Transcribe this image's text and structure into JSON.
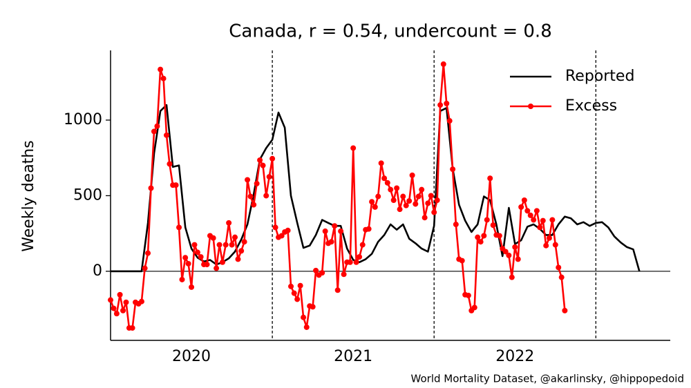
{
  "chart_data": {
    "type": "line",
    "title": "Canada, r = 0.54, undercount = 0.8",
    "y_label": "Weekly deaths",
    "source": "World Mortality Dataset, @akarlinsky, @hippopedoid",
    "xlim": [
      2020,
      2023.46
    ],
    "ylim": [
      -457,
      1461
    ],
    "xticks": [
      {
        "value": 2020.5,
        "label": "2020"
      },
      {
        "value": 2021.5,
        "label": "2021"
      },
      {
        "value": 2022.5,
        "label": "2022"
      }
    ],
    "yticks": [
      0,
      500,
      1000
    ],
    "vlines": [
      2021,
      2022,
      2023
    ],
    "legend": "upper right",
    "series": [
      {
        "name": "Reported",
        "color": "#000000",
        "marker": false,
        "x": [
          2020,
          2020.038,
          2020.077,
          2020.115,
          2020.154,
          2020.192,
          2020.231,
          2020.269,
          2020.308,
          2020.346,
          2020.385,
          2020.423,
          2020.462,
          2020.5,
          2020.538,
          2020.577,
          2020.615,
          2020.654,
          2020.692,
          2020.731,
          2020.769,
          2020.808,
          2020.846,
          2020.885,
          2020.923,
          2020.962,
          2021,
          2021.038,
          2021.077,
          2021.115,
          2021.154,
          2021.192,
          2021.231,
          2021.269,
          2021.308,
          2021.346,
          2021.385,
          2021.423,
          2021.462,
          2021.5,
          2021.538,
          2021.577,
          2021.615,
          2021.654,
          2021.692,
          2021.731,
          2021.769,
          2021.808,
          2021.846,
          2021.885,
          2021.923,
          2021.962,
          2022,
          2022.038,
          2022.077,
          2022.115,
          2022.154,
          2022.192,
          2022.231,
          2022.269,
          2022.308,
          2022.346,
          2022.385,
          2022.423,
          2022.462,
          2022.5,
          2022.538,
          2022.577,
          2022.615,
          2022.654,
          2022.692,
          2022.731,
          2022.769,
          2022.808,
          2022.846,
          2022.885,
          2022.923,
          2022.962,
          2023,
          2023.038,
          2023.077,
          2023.115,
          2023.154,
          2023.192,
          2023.231,
          2023.269
        ],
        "values": [
          0,
          0,
          0,
          0,
          0,
          0,
          320,
          780,
          1060,
          1100,
          690,
          700,
          290,
          150,
          90,
          65,
          75,
          45,
          60,
          85,
          130,
          210,
          310,
          510,
          740,
          815,
          870,
          1050,
          950,
          500,
          320,
          155,
          170,
          240,
          340,
          320,
          300,
          300,
          150,
          75,
          60,
          80,
          115,
          195,
          240,
          310,
          275,
          310,
          215,
          185,
          150,
          130,
          300,
          1060,
          1080,
          680,
          440,
          335,
          260,
          310,
          495,
          470,
          310,
          100,
          420,
          180,
          205,
          295,
          310,
          280,
          240,
          240,
          310,
          362,
          350,
          310,
          325,
          300,
          320,
          325,
          290,
          230,
          190,
          160,
          145,
          0
        ]
      },
      {
        "name": "Excess",
        "color": "#ff0000",
        "marker": true,
        "x": [
          2020,
          2020.019,
          2020.038,
          2020.058,
          2020.077,
          2020.096,
          2020.115,
          2020.135,
          2020.154,
          2020.173,
          2020.192,
          2020.212,
          2020.231,
          2020.25,
          2020.269,
          2020.288,
          2020.308,
          2020.327,
          2020.346,
          2020.365,
          2020.385,
          2020.404,
          2020.423,
          2020.442,
          2020.462,
          2020.481,
          2020.5,
          2020.519,
          2020.538,
          2020.558,
          2020.577,
          2020.596,
          2020.615,
          2020.635,
          2020.654,
          2020.673,
          2020.692,
          2020.712,
          2020.731,
          2020.75,
          2020.769,
          2020.788,
          2020.808,
          2020.827,
          2020.846,
          2020.865,
          2020.885,
          2020.904,
          2020.923,
          2020.942,
          2020.962,
          2020.981,
          2021,
          2021.019,
          2021.038,
          2021.058,
          2021.077,
          2021.096,
          2021.115,
          2021.135,
          2021.154,
          2021.173,
          2021.192,
          2021.212,
          2021.231,
          2021.25,
          2021.269,
          2021.288,
          2021.308,
          2021.327,
          2021.346,
          2021.365,
          2021.385,
          2021.404,
          2021.423,
          2021.442,
          2021.462,
          2021.481,
          2021.5,
          2021.519,
          2021.538,
          2021.558,
          2021.577,
          2021.596,
          2021.615,
          2021.635,
          2021.654,
          2021.673,
          2021.692,
          2021.712,
          2021.731,
          2021.75,
          2021.769,
          2021.788,
          2021.808,
          2021.827,
          2021.846,
          2021.865,
          2021.885,
          2021.904,
          2021.923,
          2021.942,
          2021.962,
          2021.981,
          2022,
          2022.019,
          2022.038,
          2022.058,
          2022.077,
          2022.096,
          2022.115,
          2022.135,
          2022.154,
          2022.173,
          2022.192,
          2022.212,
          2022.231,
          2022.25,
          2022.269,
          2022.288,
          2022.308,
          2022.327,
          2022.346,
          2022.365,
          2022.385,
          2022.404,
          2022.423,
          2022.442,
          2022.462,
          2022.481,
          2022.5,
          2022.519,
          2022.538,
          2022.558,
          2022.577,
          2022.596,
          2022.615,
          2022.635,
          2022.654,
          2022.673,
          2022.692,
          2022.712,
          2022.731,
          2022.75,
          2022.769,
          2022.788,
          2022.808
        ],
        "values": [
          -190,
          -245,
          -280,
          -155,
          -260,
          -205,
          -375,
          -375,
          -205,
          -215,
          -200,
          20,
          120,
          550,
          925,
          960,
          1335,
          1275,
          900,
          710,
          570,
          570,
          290,
          -55,
          90,
          50,
          -105,
          175,
          125,
          95,
          45,
          45,
          235,
          220,
          20,
          175,
          60,
          175,
          320,
          175,
          225,
          80,
          135,
          195,
          605,
          495,
          440,
          580,
          735,
          700,
          500,
          625,
          745,
          290,
          225,
          235,
          260,
          270,
          -100,
          -145,
          -185,
          -95,
          -305,
          -370,
          -230,
          -235,
          5,
          -25,
          -10,
          265,
          185,
          195,
          300,
          -125,
          265,
          -20,
          60,
          60,
          815,
          60,
          95,
          175,
          275,
          280,
          460,
          425,
          495,
          715,
          615,
          585,
          540,
          470,
          550,
          410,
          495,
          435,
          465,
          635,
          445,
          495,
          540,
          355,
          450,
          500,
          390,
          470,
          1100,
          1370,
          1110,
          995,
          675,
          310,
          80,
          70,
          -155,
          -160,
          -260,
          -240,
          225,
          195,
          235,
          340,
          615,
          305,
          240,
          235,
          150,
          130,
          105,
          -40,
          160,
          80,
          425,
          470,
          400,
          370,
          340,
          400,
          290,
          335,
          170,
          220,
          340,
          175,
          25,
          -40,
          -260
        ]
      }
    ]
  }
}
